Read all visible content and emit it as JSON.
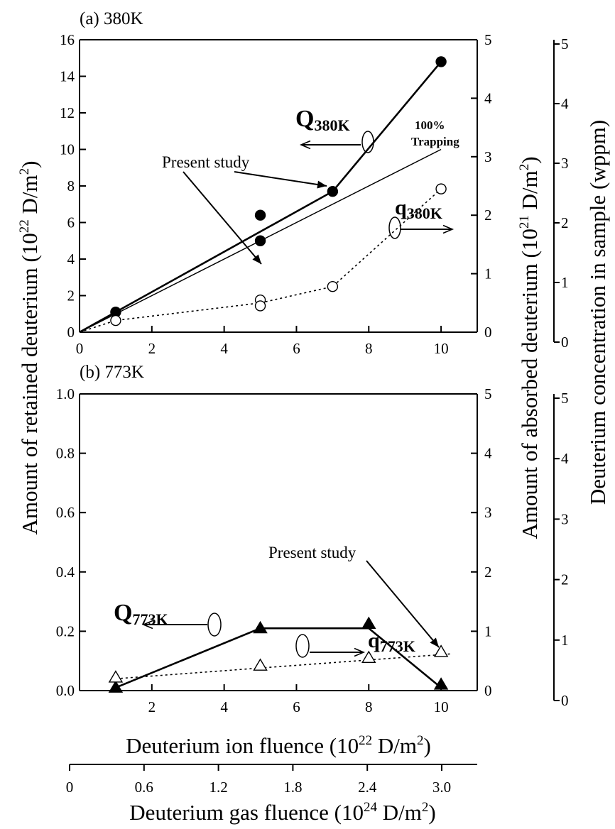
{
  "chart_data": [
    {
      "panel": "a",
      "type": "line",
      "title": "(a) 380K",
      "xlim": [
        0,
        11
      ],
      "x_ticks": [
        "0",
        "2",
        "4",
        "6",
        "8",
        "10"
      ],
      "ylim_left": [
        0,
        16
      ],
      "y_left_ticks": [
        "0",
        "2",
        "4",
        "6",
        "8",
        "10",
        "12",
        "14",
        "16"
      ],
      "ylim_right": [
        0,
        5
      ],
      "y_right_ticks": [
        "0",
        "1",
        "2",
        "3",
        "4",
        "5"
      ],
      "ylim_far_right": [
        0,
        5
      ],
      "y_far_right_ticks": [
        "0",
        "1",
        "2",
        "3",
        "4",
        "5"
      ],
      "series": [
        {
          "key": "Q380",
          "label_main": "Q",
          "label_sub": "380K",
          "axis": "left",
          "style": "solid-filled-circle",
          "points": [
            [
              1,
              1.1
            ],
            [
              5,
              6.4
            ],
            [
              7,
              7.7
            ],
            [
              10,
              14.8
            ]
          ],
          "line": [
            [
              0,
              0
            ],
            [
              7,
              7.7
            ],
            [
              10,
              14.8
            ]
          ]
        },
        {
          "key": "present_study_380",
          "axis": "left",
          "style": "filled-circle",
          "points": [
            [
              5,
              5.0
            ]
          ]
        },
        {
          "key": "q380",
          "label_main": "q",
          "label_sub": "380K",
          "axis": "right",
          "style": "dotted-open-circle",
          "points": [
            [
              1,
              0.2
            ],
            [
              5,
              0.55
            ],
            [
              5,
              0.45
            ],
            [
              7,
              0.78
            ],
            [
              10,
              2.45
            ]
          ],
          "line": [
            [
              0,
              0
            ],
            [
              1,
              0.2
            ],
            [
              5,
              0.5
            ],
            [
              7,
              0.78
            ],
            [
              10,
              2.45
            ]
          ]
        },
        {
          "key": "trapping_100",
          "axis": "left",
          "style": "thin-line",
          "line": [
            [
              0,
              0
            ],
            [
              10,
              10
            ]
          ]
        }
      ],
      "annotations": {
        "present_study": "Present study",
        "trapping_line1": "100%",
        "trapping_line2": "Trapping"
      }
    },
    {
      "panel": "b",
      "type": "line",
      "title": "(b) 773K",
      "xlim": [
        0,
        11
      ],
      "x_ticks": [
        "2",
        "4",
        "6",
        "8",
        "10"
      ],
      "ylim_left": [
        0,
        1.0
      ],
      "y_left_ticks": [
        "0.0",
        "0.2",
        "0.4",
        "0.6",
        "0.8",
        "1.0"
      ],
      "ylim_right": [
        0,
        5
      ],
      "y_right_ticks": [
        "0",
        "1",
        "2",
        "3",
        "4",
        "5"
      ],
      "ylim_far_right": [
        0,
        5
      ],
      "y_far_right_ticks": [
        "0",
        "1",
        "2",
        "3",
        "4",
        "5"
      ],
      "series": [
        {
          "key": "Q773",
          "label_main": "Q",
          "label_sub": "773K",
          "axis": "left",
          "style": "solid-filled-triangle",
          "points": [
            [
              1,
              0.01
            ],
            [
              5,
              0.21
            ],
            [
              8,
              0.225
            ],
            [
              10,
              0.02
            ]
          ],
          "line": [
            [
              1,
              0.01
            ],
            [
              5,
              0.21
            ],
            [
              8,
              0.21
            ],
            [
              10,
              0.01
            ]
          ]
        },
        {
          "key": "q773",
          "label_main": "q",
          "label_sub": "773K",
          "axis": "right",
          "style": "dotted-open-triangle",
          "points": [
            [
              1,
              0.22
            ],
            [
              5,
              0.42
            ],
            [
              8,
              0.55
            ],
            [
              10,
              0.65
            ]
          ],
          "line": [
            [
              1,
              0.2
            ],
            [
              10.3,
              0.62
            ]
          ]
        }
      ],
      "annotations": {
        "present_study": "Present study"
      }
    }
  ],
  "axes": {
    "left_label": "Amount of retained deuterium (10",
    "left_label_sup": "22",
    "left_label_tail": " D/m",
    "left_label_sup2": "2",
    "left_label_end": ")",
    "right_label": "Amount of absorbed deuterium (10",
    "right_label_sup": "21",
    "right_label_tail": " D/m",
    "right_label_sup2": "2",
    "right_label_end": ")",
    "far_right_label": "Deuterium concentration in sample (wppm)",
    "x_label": "Deuterium ion fluence (10",
    "x_label_sup": "22",
    "x_label_tail": " D/m",
    "x_label_sup2": "2",
    "x_label_end": ")",
    "x2_label": "Deuterium gas fluence (10",
    "x2_label_sup": "24",
    "x2_label_tail": " D/m",
    "x2_label_sup2": "2",
    "x2_label_end": ")",
    "x2_ticks": [
      "0",
      "0.6",
      "1.2",
      "1.8",
      "2.4",
      "3.0"
    ]
  }
}
